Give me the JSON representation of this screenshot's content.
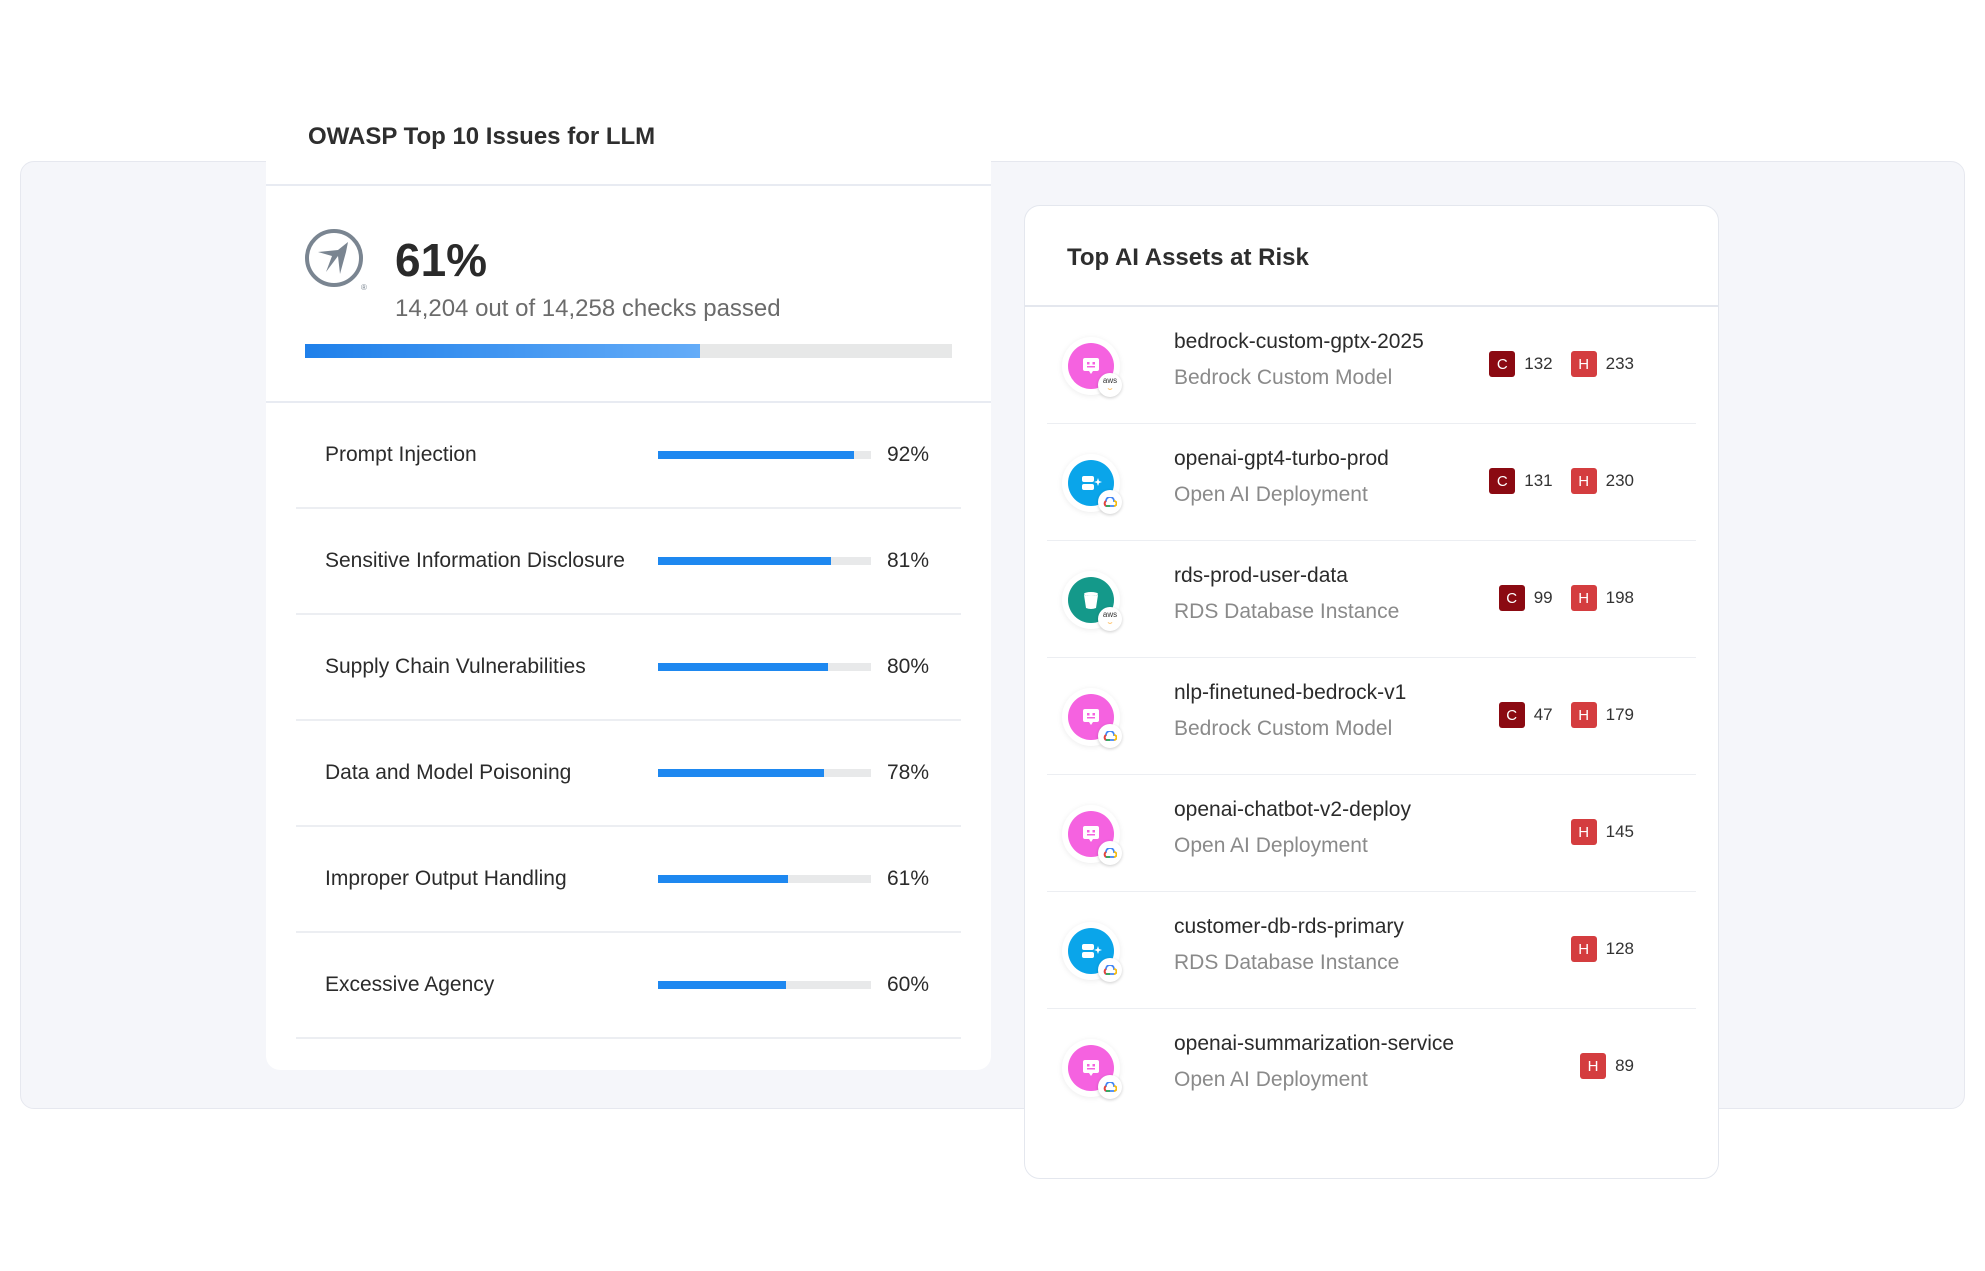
{
  "owasp": {
    "title": "OWASP Top 10 Issues for LLM",
    "score": "61%",
    "score_value": 61,
    "checks": "14,204 out of 14,258 checks passed",
    "issues": [
      {
        "label": "Prompt Injection",
        "pct": "92%",
        "value": 92
      },
      {
        "label": "Sensitive Information Disclosure",
        "pct": "81%",
        "value": 81
      },
      {
        "label": "Supply Chain Vulnerabilities",
        "pct": "80%",
        "value": 80
      },
      {
        "label": "Data and Model Poisoning",
        "pct": "78%",
        "value": 78
      },
      {
        "label": "Improper Output Handling",
        "pct": "61%",
        "value": 61
      },
      {
        "label": "Excessive Agency",
        "pct": "60%",
        "value": 60
      }
    ]
  },
  "assets": {
    "title": "Top AI Assets at Risk",
    "critical_label": "C",
    "high_label": "H",
    "colors": {
      "critical": "#8b0a12",
      "high": "#d43d3f",
      "model": "#f562e0",
      "openai": "#0aa5ea",
      "database": "#14998a"
    },
    "items": [
      {
        "name": "bedrock-custom-gptx-2025",
        "type": "Bedrock Custom Model",
        "icon": "robot-icon",
        "provider": "aws",
        "critical": "132",
        "high": "233"
      },
      {
        "name": "openai-gpt4-turbo-prod",
        "type": "Open AI Deployment",
        "icon": "ai-sparkle-icon",
        "provider": "gcp",
        "critical": "131",
        "high": "230"
      },
      {
        "name": "rds-prod-user-data",
        "type": "RDS Database Instance",
        "icon": "bucket-icon",
        "provider": "aws",
        "critical": "99",
        "high": "198"
      },
      {
        "name": "nlp-finetuned-bedrock-v1",
        "type": "Bedrock Custom Model",
        "icon": "robot-icon",
        "provider": "gcp",
        "critical": "47",
        "high": "179"
      },
      {
        "name": "openai-chatbot-v2-deploy",
        "type": "Open AI Deployment",
        "icon": "robot-icon",
        "provider": "gcp",
        "critical": null,
        "high": "145"
      },
      {
        "name": "customer-db-rds-primary",
        "type": "RDS Database Instance",
        "icon": "ai-sparkle-icon",
        "provider": "gcp",
        "critical": null,
        "high": "128"
      },
      {
        "name": "openai-summarization-service",
        "type": "Open AI Deployment",
        "icon": "robot-icon",
        "provider": "gcp",
        "critical": null,
        "high": "89"
      }
    ]
  }
}
